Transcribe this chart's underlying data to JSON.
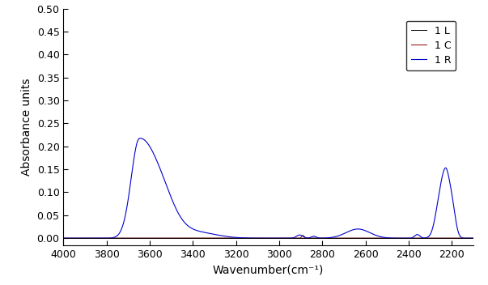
{
  "xlabel": "Wavenumber(cm⁻¹)",
  "ylabel": "Absorbance units",
  "xlim": [
    4000,
    2100
  ],
  "ylim": [
    -0.015,
    0.5
  ],
  "yticks": [
    0.0,
    0.05,
    0.1,
    0.15,
    0.2,
    0.25,
    0.3,
    0.35,
    0.4,
    0.45,
    0.5
  ],
  "xticks": [
    4000,
    3800,
    3600,
    3400,
    3200,
    3000,
    2800,
    2600,
    2400,
    2200
  ],
  "legend_labels": [
    "1 L",
    "1 C",
    "1 R"
  ],
  "legend_colors": [
    "#000000",
    "#8B0000",
    "#0000CD"
  ],
  "line_color_L": "#000000",
  "line_color_C": "#8B0000",
  "line_color_R": "#0000CD",
  "background_color": "#ffffff",
  "figsize": [
    6.03,
    3.52
  ],
  "dpi": 100
}
